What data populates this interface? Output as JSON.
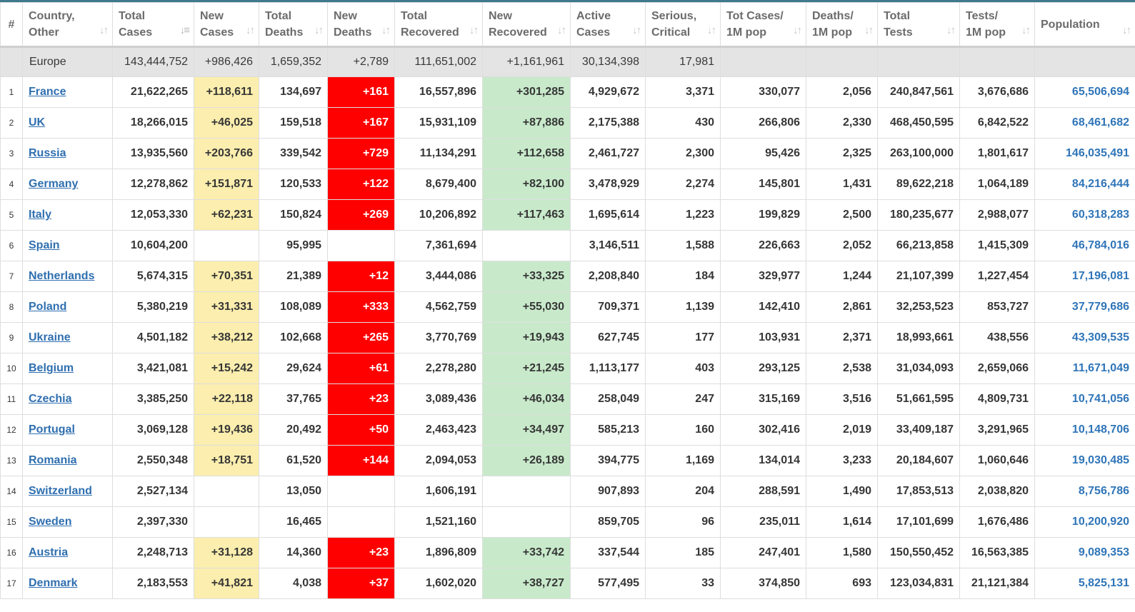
{
  "columns": [
    {
      "line1": "#",
      "line2": ""
    },
    {
      "line1": "Country,",
      "line2": "Other"
    },
    {
      "line1": "Total",
      "line2": "Cases"
    },
    {
      "line1": "New",
      "line2": "Cases"
    },
    {
      "line1": "Total",
      "line2": "Deaths"
    },
    {
      "line1": "New",
      "line2": "Deaths"
    },
    {
      "line1": "Total",
      "line2": "Recovered"
    },
    {
      "line1": "New",
      "line2": "Recovered"
    },
    {
      "line1": "Active",
      "line2": "Cases"
    },
    {
      "line1": "Serious,",
      "line2": "Critical"
    },
    {
      "line1": "Tot Cases/",
      "line2": "1M pop"
    },
    {
      "line1": "Deaths/",
      "line2": "1M pop"
    },
    {
      "line1": "Total",
      "line2": "Tests"
    },
    {
      "line1": "Tests/",
      "line2": "1M pop"
    },
    {
      "line1": "",
      "line2": "Population"
    }
  ],
  "total_row": {
    "region": "Europe",
    "total_cases": "143,444,752",
    "new_cases": "+986,426",
    "total_deaths": "1,659,352",
    "new_deaths": "+2,789",
    "total_recovered": "111,651,002",
    "new_recovered": "+1,161,961",
    "active_cases": "30,134,398",
    "serious_critical": "17,981",
    "cases_per_1m": "",
    "deaths_per_1m": "",
    "total_tests": "",
    "tests_per_1m": "",
    "population": ""
  },
  "rows": [
    [
      "1",
      "France",
      "21,622,265",
      "+118,611",
      "134,697",
      "+161",
      "16,557,896",
      "+301,285",
      "4,929,672",
      "3,371",
      "330,077",
      "2,056",
      "240,847,561",
      "3,676,686",
      "65,506,694"
    ],
    [
      "2",
      "UK",
      "18,266,015",
      "+46,025",
      "159,518",
      "+167",
      "15,931,109",
      "+87,886",
      "2,175,388",
      "430",
      "266,806",
      "2,330",
      "468,450,595",
      "6,842,522",
      "68,461,682"
    ],
    [
      "3",
      "Russia",
      "13,935,560",
      "+203,766",
      "339,542",
      "+729",
      "11,134,291",
      "+112,658",
      "2,461,727",
      "2,300",
      "95,426",
      "2,325",
      "263,100,000",
      "1,801,617",
      "146,035,491"
    ],
    [
      "4",
      "Germany",
      "12,278,862",
      "+151,871",
      "120,533",
      "+122",
      "8,679,400",
      "+82,100",
      "3,478,929",
      "2,274",
      "145,801",
      "1,431",
      "89,622,218",
      "1,064,189",
      "84,216,444"
    ],
    [
      "5",
      "Italy",
      "12,053,330",
      "+62,231",
      "150,824",
      "+269",
      "10,206,892",
      "+117,463",
      "1,695,614",
      "1,223",
      "199,829",
      "2,500",
      "180,235,677",
      "2,988,077",
      "60,318,283"
    ],
    [
      "6",
      "Spain",
      "10,604,200",
      "",
      "95,995",
      "",
      "7,361,694",
      "",
      "3,146,511",
      "1,588",
      "226,663",
      "2,052",
      "66,213,858",
      "1,415,309",
      "46,784,016"
    ],
    [
      "7",
      "Netherlands",
      "5,674,315",
      "+70,351",
      "21,389",
      "+12",
      "3,444,086",
      "+33,325",
      "2,208,840",
      "184",
      "329,977",
      "1,244",
      "21,107,399",
      "1,227,454",
      "17,196,081"
    ],
    [
      "8",
      "Poland",
      "5,380,219",
      "+31,331",
      "108,089",
      "+333",
      "4,562,759",
      "+55,030",
      "709,371",
      "1,139",
      "142,410",
      "2,861",
      "32,253,523",
      "853,727",
      "37,779,686"
    ],
    [
      "9",
      "Ukraine",
      "4,501,182",
      "+38,212",
      "102,668",
      "+265",
      "3,770,769",
      "+19,943",
      "627,745",
      "177",
      "103,931",
      "2,371",
      "18,993,661",
      "438,556",
      "43,309,535"
    ],
    [
      "10",
      "Belgium",
      "3,421,081",
      "+15,242",
      "29,624",
      "+61",
      "2,278,280",
      "+21,245",
      "1,113,177",
      "403",
      "293,125",
      "2,538",
      "31,034,093",
      "2,659,066",
      "11,671,049"
    ],
    [
      "11",
      "Czechia",
      "3,385,250",
      "+22,118",
      "37,765",
      "+23",
      "3,089,436",
      "+46,034",
      "258,049",
      "247",
      "315,169",
      "3,516",
      "51,661,595",
      "4,809,731",
      "10,741,056"
    ],
    [
      "12",
      "Portugal",
      "3,069,128",
      "+19,436",
      "20,492",
      "+50",
      "2,463,423",
      "+34,497",
      "585,213",
      "160",
      "302,416",
      "2,019",
      "33,409,187",
      "3,291,965",
      "10,148,706"
    ],
    [
      "13",
      "Romania",
      "2,550,348",
      "+18,751",
      "61,520",
      "+144",
      "2,094,053",
      "+26,189",
      "394,775",
      "1,169",
      "134,014",
      "3,233",
      "20,184,607",
      "1,060,646",
      "19,030,485"
    ],
    [
      "14",
      "Switzerland",
      "2,527,134",
      "",
      "13,050",
      "",
      "1,606,191",
      "",
      "907,893",
      "204",
      "288,591",
      "1,490",
      "17,853,513",
      "2,038,820",
      "8,756,786"
    ],
    [
      "15",
      "Sweden",
      "2,397,330",
      "",
      "16,465",
      "",
      "1,521,160",
      "",
      "859,705",
      "96",
      "235,011",
      "1,614",
      "17,101,699",
      "1,676,486",
      "10,200,920"
    ],
    [
      "16",
      "Austria",
      "2,248,713",
      "+31,128",
      "14,360",
      "+23",
      "1,896,809",
      "+33,742",
      "337,544",
      "185",
      "247,401",
      "1,580",
      "150,550,452",
      "16,563,385",
      "9,089,353"
    ],
    [
      "17",
      "Denmark",
      "2,183,553",
      "+41,821",
      "4,038",
      "+37",
      "1,602,020",
      "+38,727",
      "577,495",
      "33",
      "374,850",
      "693",
      "123,034,831",
      "21,121,384",
      "5,825,131"
    ]
  ],
  "colors": {
    "new_cases_bg": "#fbeeae",
    "new_deaths_bg": "#ff0000",
    "new_recovered_bg": "#c8eacb",
    "link": "#2f6fb0",
    "population_text": "#2f75b8",
    "region_row_bg": "#e4e4e4"
  },
  "sort_icon": "sort-arrows-icon",
  "active_sort_icon": "sort-desc-icon"
}
